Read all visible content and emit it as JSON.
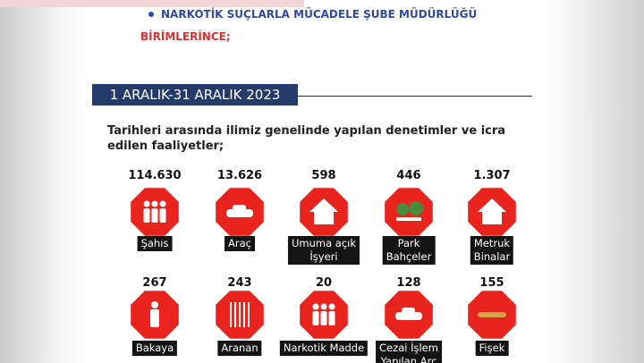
{
  "header": {
    "bullet": "NARKOTİK SUÇLARLA MÜCADELE ŞUBE MÜDÜRLÜĞÜ",
    "subtitle": "BİRİMLERİNCE;"
  },
  "period": "1 ARALIK-31 ARALIK 2023",
  "intro": [
    "Tarihleri arasında ilimiz genelinde yapılan denetimler ve icra",
    "edilen faaliyetler;"
  ],
  "stats": [
    [
      {
        "value": "114.630",
        "label": [
          "Şahıs"
        ]
      },
      {
        "value": "13.626",
        "label": [
          "Araç"
        ]
      },
      {
        "value": "598",
        "label": [
          "Umuma açık",
          "İşyeri"
        ]
      },
      {
        "value": "446",
        "label": [
          "Park",
          "Bahçeler"
        ]
      },
      {
        "value": "1.307",
        "label": [
          "Metruk",
          "Binalar"
        ]
      }
    ],
    [
      {
        "value": "267",
        "label": [
          "Bakaya"
        ]
      },
      {
        "value": "243",
        "label": [
          "Aranan"
        ]
      },
      {
        "value": "20",
        "label": [
          "Narkotik Madde"
        ]
      },
      {
        "value": "128",
        "label": [
          "Cezai İşlem",
          "Yapılan Arç"
        ]
      },
      {
        "value": "155",
        "label": [
          "Fişek"
        ]
      }
    ]
  ]
}
